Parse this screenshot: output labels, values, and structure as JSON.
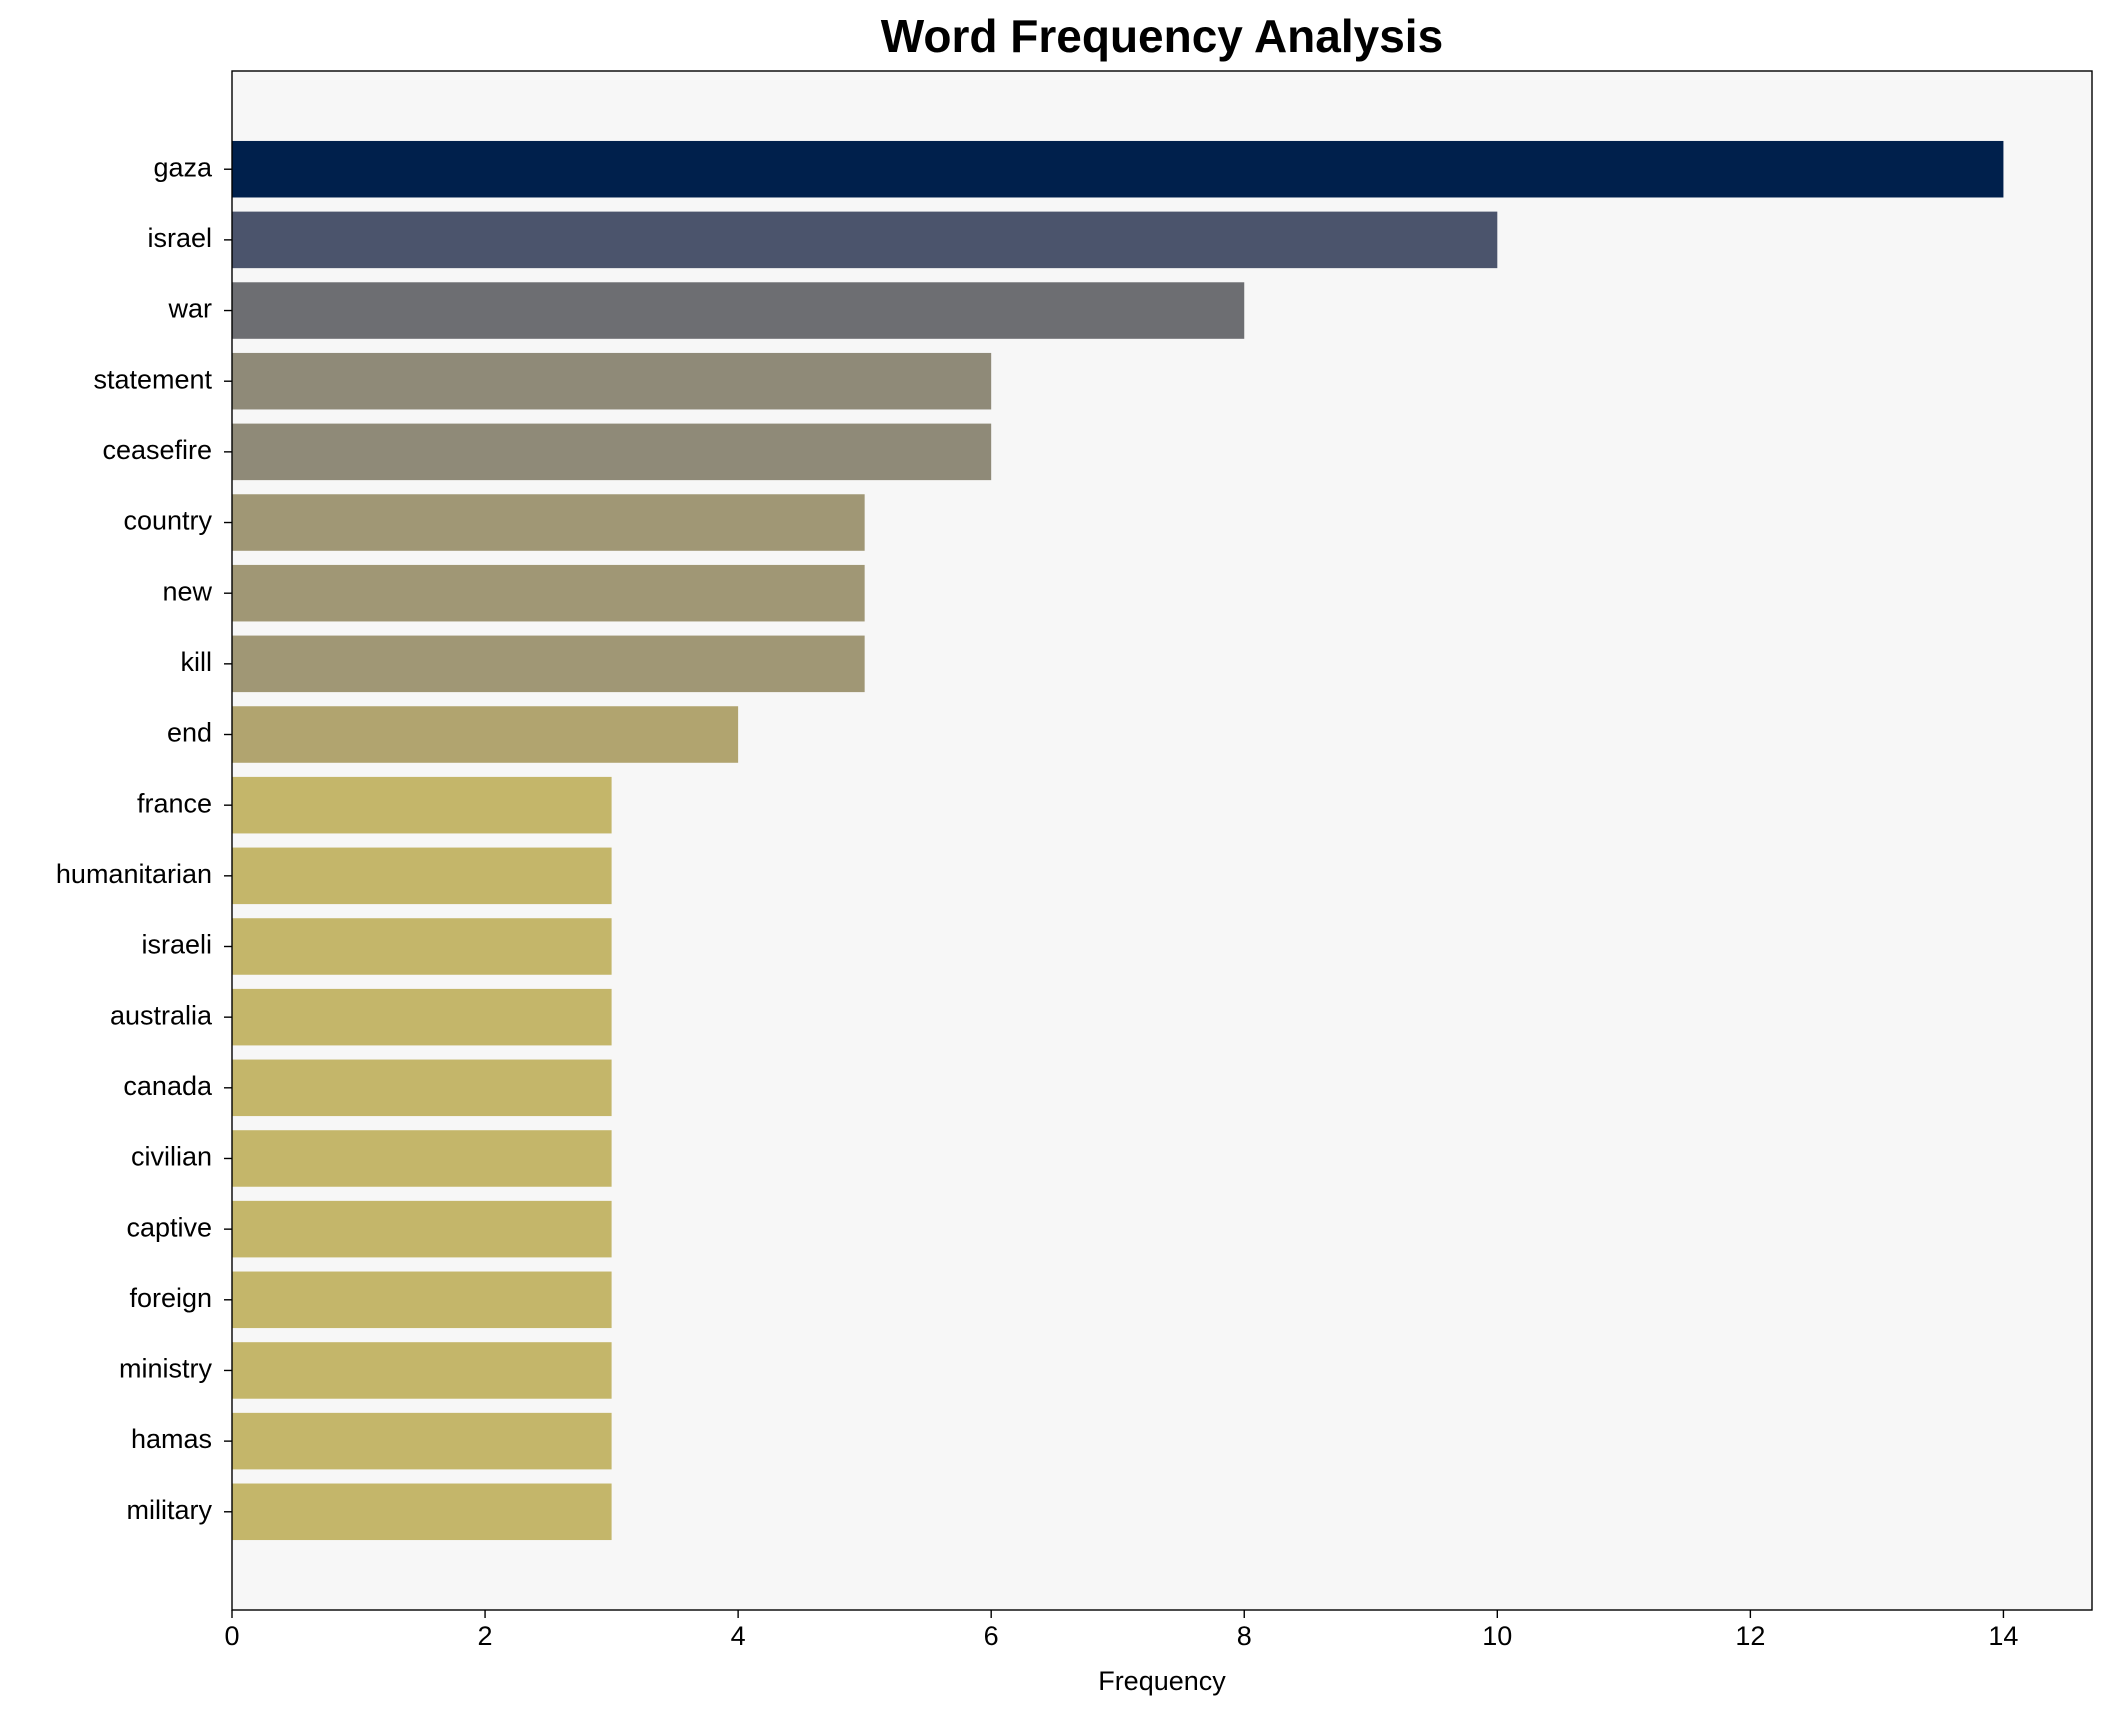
{
  "chart_data": {
    "type": "bar",
    "orientation": "horizontal",
    "title": "Word Frequency Analysis",
    "xlabel": "Frequency",
    "categories": [
      "gaza",
      "israel",
      "war",
      "statement",
      "ceasefire",
      "country",
      "new",
      "kill",
      "end",
      "france",
      "humanitarian",
      "israeli",
      "australia",
      "canada",
      "civilian",
      "captive",
      "foreign",
      "ministry",
      "hamas",
      "military"
    ],
    "values": [
      14,
      10,
      8,
      6,
      6,
      5,
      5,
      5,
      4,
      3,
      3,
      3,
      3,
      3,
      3,
      3,
      3,
      3,
      3,
      3
    ],
    "colors": [
      "#00204c",
      "#4b546c",
      "#6d6e72",
      "#8f8a78",
      "#8f8a78",
      "#a09775",
      "#a09775",
      "#a09775",
      "#b1a46f",
      "#c4b66a",
      "#c4b66a",
      "#c4b66a",
      "#c4b66a",
      "#c4b66a",
      "#c4b66a",
      "#c4b66a",
      "#c4b66a",
      "#c4b66a",
      "#c4b66a",
      "#c4b66a"
    ],
    "xlim": [
      0,
      14.7
    ],
    "xticks": [
      0,
      2,
      4,
      6,
      8,
      10,
      12,
      14
    ],
    "grid": false
  }
}
